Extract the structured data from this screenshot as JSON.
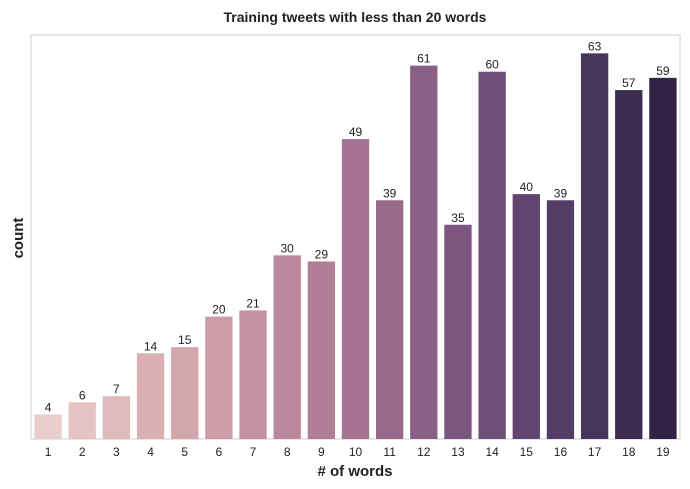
{
  "chart_data": {
    "type": "bar",
    "title": "Training tweets with less than 20 words",
    "xlabel": "# of words",
    "ylabel": "count",
    "categories": [
      "1",
      "2",
      "3",
      "4",
      "5",
      "6",
      "7",
      "8",
      "9",
      "10",
      "11",
      "12",
      "13",
      "14",
      "15",
      "16",
      "17",
      "18",
      "19"
    ],
    "values": [
      4,
      6,
      7,
      14,
      15,
      20,
      21,
      30,
      29,
      49,
      39,
      61,
      35,
      60,
      40,
      39,
      63,
      57,
      59
    ],
    "ylim": [
      0,
      66
    ],
    "grid": false,
    "legend": "none",
    "colors": [
      "#e8cdcb",
      "#e6c4c3",
      "#dfbabb",
      "#d9b0b3",
      "#d3a6ac",
      "#cc9ca7",
      "#c592a2",
      "#bb879c",
      "#b17d97",
      "#a57391",
      "#98698b",
      "#8a5f86",
      "#7c567f",
      "#6e4d78",
      "#604570",
      "#533c66",
      "#47345c",
      "#3c2c51",
      "#302345"
    ]
  }
}
